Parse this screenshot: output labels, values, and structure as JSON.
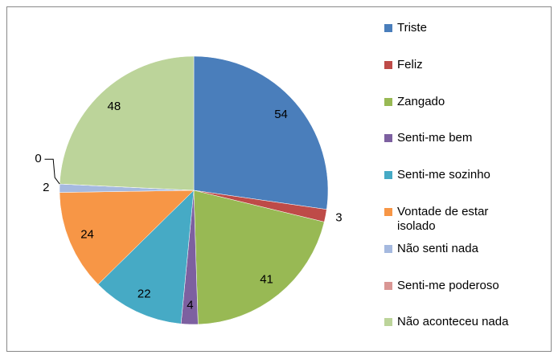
{
  "chart_data": {
    "type": "pie",
    "categories": [
      "Triste",
      "Feliz",
      "Zangado",
      "Senti-me bem",
      "Senti-me sozinho",
      "Vontade de estar isolado",
      "Não senti nada",
      "Senti-me poderoso",
      "Não aconteceu nada"
    ],
    "values": [
      54,
      3,
      41,
      4,
      22,
      24,
      2,
      0,
      48
    ],
    "colors": [
      "#4a7ebb",
      "#be4b48",
      "#98b954",
      "#7d60a0",
      "#46aac5",
      "#f79646",
      "#a5b9df",
      "#d99694",
      "#bcd49a"
    ],
    "legend": "right"
  }
}
